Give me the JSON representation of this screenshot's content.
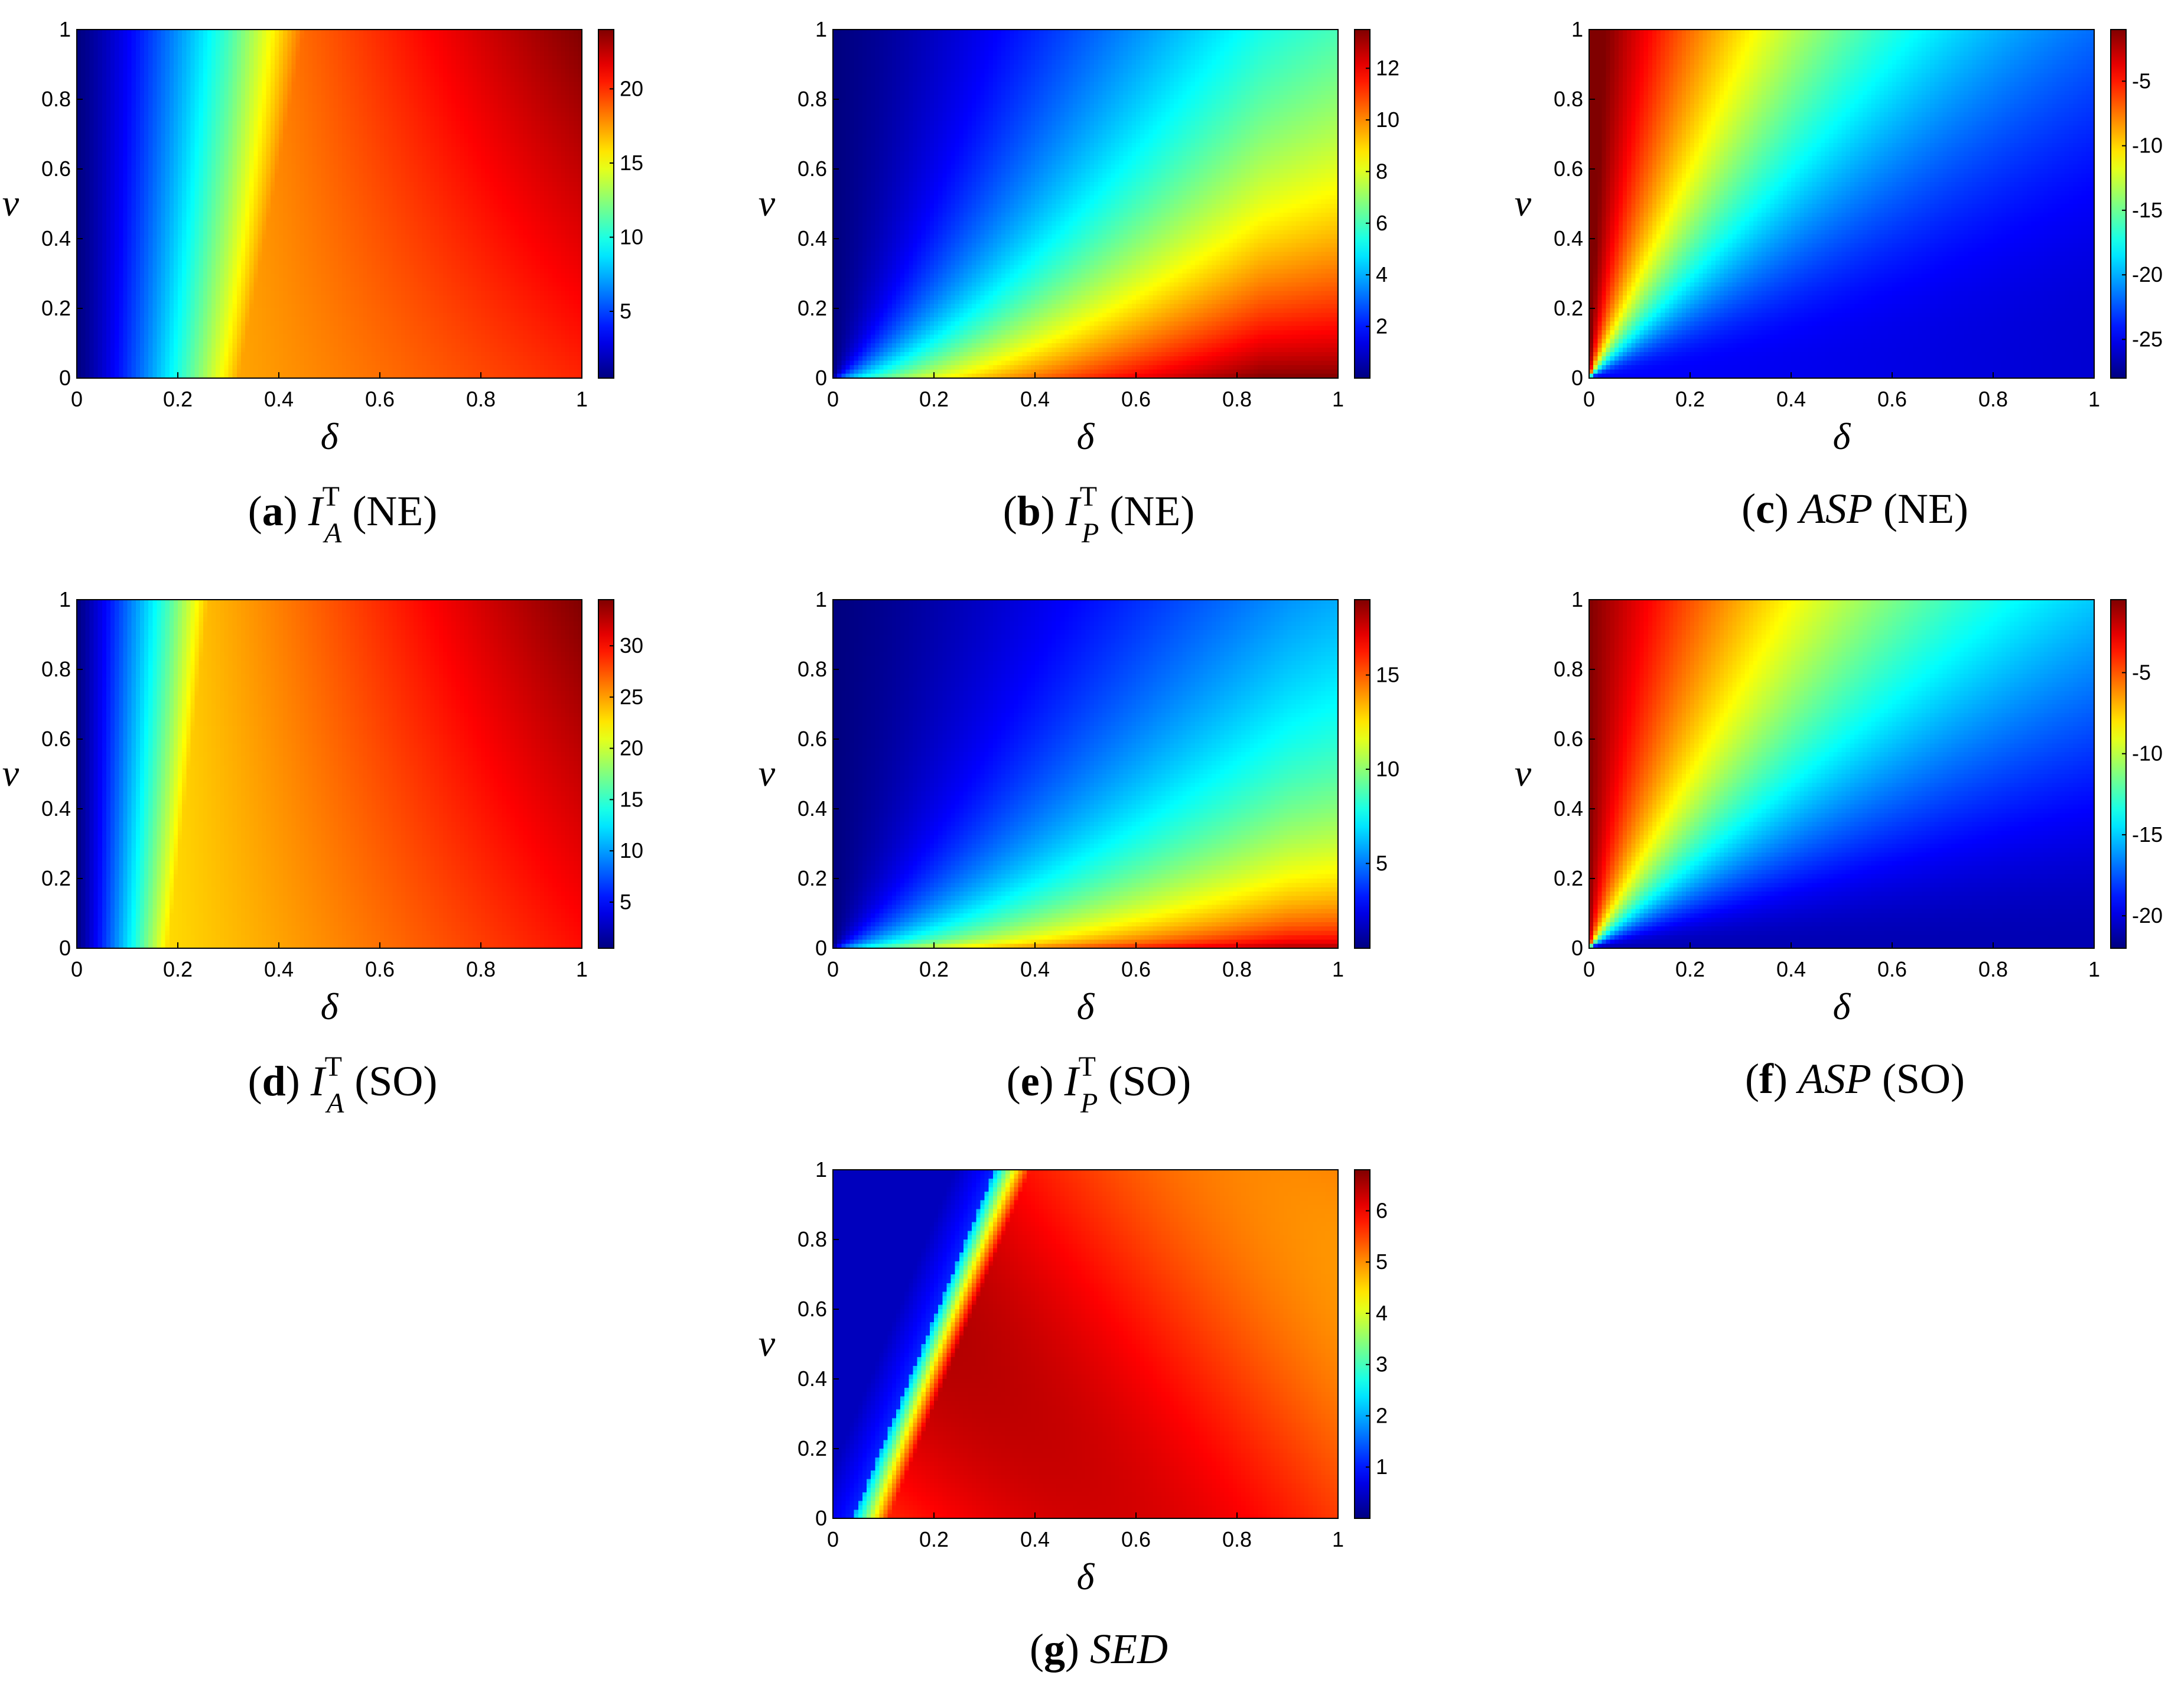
{
  "chart_data": [
    {
      "id": "a",
      "type": "heatmap",
      "caption": {
        "letter": "a",
        "symbol": "I",
        "superscript": "T",
        "subscript": "A",
        "qualifier": "(NE)"
      },
      "xlabel": "δ",
      "ylabel": "ν",
      "xlim": [
        0,
        1
      ],
      "ylim": [
        0,
        1
      ],
      "x_ticks": [
        "0",
        "0.2",
        "0.4",
        "0.6",
        "0.8",
        "1"
      ],
      "y_ticks": [
        "0",
        "0.2",
        "0.4",
        "0.6",
        "0.8",
        "1"
      ],
      "colorbar": {
        "min": 0.5,
        "max": 24,
        "ticks": [
          5,
          10,
          15,
          20
        ],
        "tick_labels": [
          "5",
          "10",
          "15",
          "20"
        ]
      },
      "pattern": "ia_ne"
    },
    {
      "id": "b",
      "type": "heatmap",
      "caption": {
        "letter": "b",
        "symbol": "I",
        "superscript": "T",
        "subscript": "P",
        "qualifier": "(NE)"
      },
      "xlabel": "δ",
      "ylabel": "ν",
      "xlim": [
        0,
        1
      ],
      "ylim": [
        0,
        1
      ],
      "x_ticks": [
        "0",
        "0.2",
        "0.4",
        "0.6",
        "0.8",
        "1"
      ],
      "y_ticks": [
        "0",
        "0.2",
        "0.4",
        "0.6",
        "0.8",
        "1"
      ],
      "colorbar": {
        "min": 0,
        "max": 13.5,
        "ticks": [
          2,
          4,
          6,
          8,
          10,
          12
        ],
        "tick_labels": [
          "2",
          "4",
          "6",
          "8",
          "10",
          "12"
        ]
      },
      "pattern": "ip_ne"
    },
    {
      "id": "c",
      "type": "heatmap",
      "caption": {
        "letter": "c",
        "symbol": "ASP",
        "superscript": "",
        "subscript": "",
        "qualifier": "(NE)"
      },
      "xlabel": "δ",
      "ylabel": "ν",
      "xlim": [
        0,
        1
      ],
      "ylim": [
        0,
        1
      ],
      "x_ticks": [
        "0",
        "0.2",
        "0.4",
        "0.6",
        "0.8",
        "1"
      ],
      "y_ticks": [
        "0",
        "0.2",
        "0.4",
        "0.6",
        "0.8",
        "1"
      ],
      "colorbar": {
        "min": -28,
        "max": -1,
        "ticks": [
          -25,
          -20,
          -15,
          -10,
          -5
        ],
        "tick_labels": [
          "-25",
          "-20",
          "-15",
          "-10",
          "-5"
        ]
      },
      "pattern": "asp_ne"
    },
    {
      "id": "d",
      "type": "heatmap",
      "caption": {
        "letter": "d",
        "symbol": "I",
        "superscript": "T",
        "subscript": "A",
        "qualifier": "(SO)"
      },
      "xlabel": "δ",
      "ylabel": "ν",
      "xlim": [
        0,
        1
      ],
      "ylim": [
        0,
        1
      ],
      "x_ticks": [
        "0",
        "0.2",
        "0.4",
        "0.6",
        "0.8",
        "1"
      ],
      "y_ticks": [
        "0",
        "0.2",
        "0.4",
        "0.6",
        "0.8",
        "1"
      ],
      "colorbar": {
        "min": 0.5,
        "max": 34.5,
        "ticks": [
          5,
          10,
          15,
          20,
          25,
          30
        ],
        "tick_labels": [
          "5",
          "10",
          "15",
          "20",
          "25",
          "30"
        ]
      },
      "pattern": "ia_so"
    },
    {
      "id": "e",
      "type": "heatmap",
      "caption": {
        "letter": "e",
        "symbol": "I",
        "superscript": "T",
        "subscript": "P",
        "qualifier": "(SO)"
      },
      "xlabel": "δ",
      "ylabel": "ν",
      "xlim": [
        0,
        1
      ],
      "ylim": [
        0,
        1
      ],
      "x_ticks": [
        "0",
        "0.2",
        "0.4",
        "0.6",
        "0.8",
        "1"
      ],
      "y_ticks": [
        "0",
        "0.2",
        "0.4",
        "0.6",
        "0.8",
        "1"
      ],
      "colorbar": {
        "min": 0.5,
        "max": 19,
        "ticks": [
          5,
          10,
          15
        ],
        "tick_labels": [
          "5",
          "10",
          "15"
        ]
      },
      "pattern": "ip_so"
    },
    {
      "id": "f",
      "type": "heatmap",
      "caption": {
        "letter": "f",
        "symbol": "ASP",
        "superscript": "",
        "subscript": "",
        "qualifier": "(SO)"
      },
      "xlabel": "δ",
      "ylabel": "ν",
      "xlim": [
        0,
        1
      ],
      "ylim": [
        0,
        1
      ],
      "x_ticks": [
        "0",
        "0.2",
        "0.4",
        "0.6",
        "0.8",
        "1"
      ],
      "y_ticks": [
        "0",
        "0.2",
        "0.4",
        "0.6",
        "0.8",
        "1"
      ],
      "colorbar": {
        "min": -22,
        "max": -0.5,
        "ticks": [
          -20,
          -15,
          -10,
          -5
        ],
        "tick_labels": [
          "-20",
          "-15",
          "-10",
          "-5"
        ]
      },
      "pattern": "asp_so"
    },
    {
      "id": "g",
      "type": "heatmap",
      "caption": {
        "letter": "g",
        "symbol": "SED",
        "superscript": "",
        "subscript": "",
        "qualifier": ""
      },
      "xlabel": "δ",
      "ylabel": "ν",
      "xlim": [
        0,
        1
      ],
      "ylim": [
        0,
        1
      ],
      "x_ticks": [
        "0",
        "0.2",
        "0.4",
        "0.6",
        "0.8",
        "1"
      ],
      "y_ticks": [
        "0",
        "0.2",
        "0.4",
        "0.6",
        "0.8",
        "1"
      ],
      "colorbar": {
        "min": 0,
        "max": 6.8,
        "ticks": [
          1,
          2,
          3,
          4,
          5,
          6
        ],
        "tick_labels": [
          "1",
          "2",
          "3",
          "4",
          "5",
          "6"
        ]
      },
      "pattern": "sed"
    }
  ],
  "colormap": "jet",
  "grid": false
}
